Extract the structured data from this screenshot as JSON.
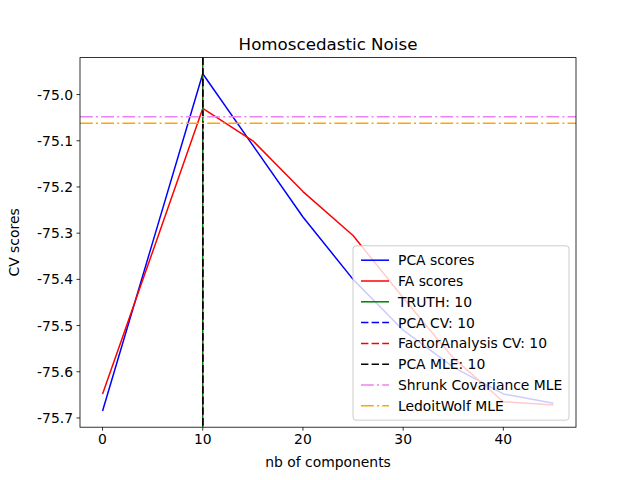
{
  "chart_data": {
    "type": "line",
    "title": "Homoscedastic Noise",
    "x_label": "nb of components",
    "y_label": "CV scores",
    "x": [
      0,
      5,
      10,
      15,
      20,
      25,
      30,
      35,
      40,
      45
    ],
    "series": [
      {
        "name": "PCA scores",
        "color": "#0000ff",
        "line_style": "solid",
        "values": [
          -75.685,
          -75.32,
          -74.955,
          -75.11,
          -75.265,
          -75.4,
          -75.51,
          -75.59,
          -75.648,
          -75.668
        ]
      },
      {
        "name": "FA scores",
        "color": "#ff0000",
        "line_style": "solid",
        "values": [
          -75.648,
          -75.34,
          -75.03,
          -75.1,
          -75.21,
          -75.305,
          -75.44,
          -75.57,
          -75.665,
          -75.672
        ]
      }
    ],
    "vlines": [
      {
        "name": "TRUTH: 10",
        "value": 10,
        "color": "#008000",
        "line_style": "solid"
      },
      {
        "name": "PCA CV: 10",
        "value": 10,
        "color": "#0000ff",
        "line_style": "dashed"
      },
      {
        "name": "FactorAnalysis CV: 10",
        "value": 10,
        "color": "#ff0000",
        "line_style": "dashed"
      },
      {
        "name": "PCA MLE: 10",
        "value": 10,
        "color": "#000000",
        "line_style": "dashed"
      }
    ],
    "hlines": [
      {
        "name": "Shrunk Covariance MLE",
        "value": -75.048,
        "color": "#ee82ee",
        "line_style": "dashdot"
      },
      {
        "name": "LedoitWolf MLE",
        "value": -75.062,
        "color": "#ffa500",
        "line_style": "dashdot"
      }
    ],
    "xlim": [
      -2.25,
      47.25
    ],
    "xticks": [
      0,
      10,
      20,
      30,
      40
    ],
    "ylim": [
      -75.72,
      -74.92
    ],
    "yticks": [
      -75.7,
      -75.6,
      -75.5,
      -75.4,
      -75.3,
      -75.2,
      -75.1,
      {
        "value": -75.0,
        "label": "-75.0"
      }
    ],
    "grid": false,
    "legend": "lower right"
  }
}
